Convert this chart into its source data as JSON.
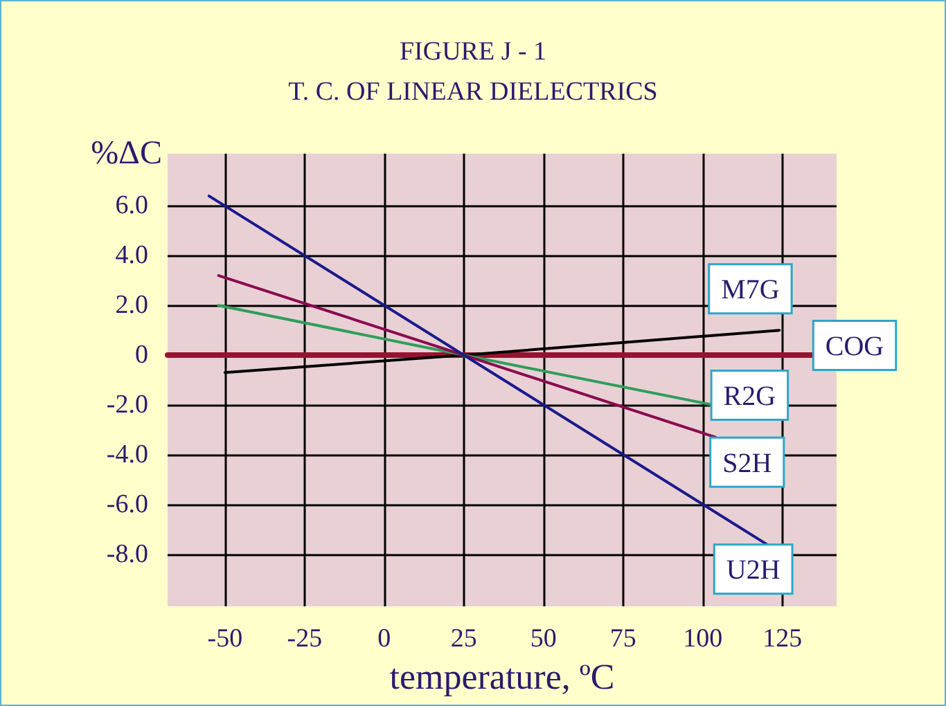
{
  "chart_data": {
    "type": "line",
    "title": "FIGURE J - 1",
    "subtitle": "T. C. OF LINEAR DIELECTRICS",
    "xlabel": "temperature, ºC",
    "ylabel": "%ΔC",
    "xlim": [
      -68,
      142
    ],
    "xticks": [
      -50,
      -25,
      0,
      25,
      50,
      75,
      100,
      125
    ],
    "ylim": [
      -10.1,
      8.1
    ],
    "yticks": [
      {
        "value": 6,
        "label": "6.0"
      },
      {
        "value": 4,
        "label": "4.0"
      },
      {
        "value": 2,
        "label": "2.0"
      },
      0,
      {
        "value": -2,
        "label": "-2.0"
      },
      {
        "value": -4,
        "label": "-4.0"
      },
      {
        "value": -6,
        "label": "-6.0"
      },
      {
        "value": -8,
        "label": "-8.0"
      }
    ],
    "grid": true,
    "legend": false,
    "marker": "none",
    "line_style": "solid",
    "series": [
      {
        "name": "M7G",
        "color": "#000000",
        "x": [
          -50,
          25,
          124
        ],
        "values": [
          -0.7,
          0,
          1.0
        ]
      },
      {
        "name": "COG",
        "color": "#9b1030",
        "x": [
          -68,
          135
        ],
        "values": [
          0,
          0
        ]
      },
      {
        "name": "R2G",
        "color": "#2e9e5a",
        "x": [
          -52,
          25,
          103
        ],
        "values": [
          2.0,
          0,
          -2.0
        ]
      },
      {
        "name": "S2H",
        "color": "#8b0a50",
        "x": [
          -52,
          25,
          104
        ],
        "values": [
          3.2,
          0,
          -3.3
        ]
      },
      {
        "name": "U2H",
        "color": "#1a1a8c",
        "x": [
          -55,
          25,
          120
        ],
        "values": [
          6.4,
          0,
          -7.6
        ]
      }
    ]
  }
}
